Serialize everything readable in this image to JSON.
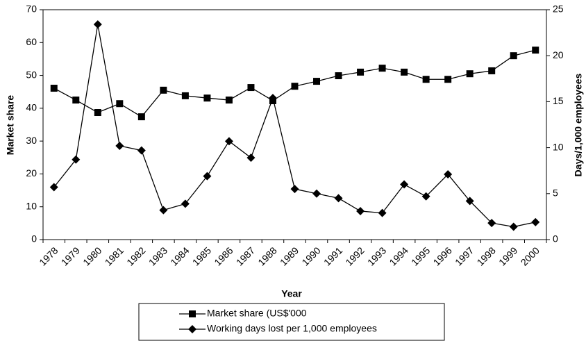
{
  "chart_data": {
    "type": "line",
    "xlabel": "Year",
    "ylabel": "Market share",
    "y2label": "Days/1,000 employees",
    "categories": [
      "1978",
      "1979",
      "1980",
      "1981",
      "1982",
      "1983",
      "1984",
      "1985",
      "1986",
      "1987",
      "1988",
      "1989",
      "1990",
      "1991",
      "1992",
      "1993",
      "1994",
      "1995",
      "1996",
      "1997",
      "1998",
      "1999",
      "2000"
    ],
    "series": [
      {
        "name": "Market share (US$'000",
        "color": "#000000",
        "marker": "square",
        "axis": "y",
        "values": [
          46.1,
          42.5,
          38.7,
          41.4,
          37.4,
          45.5,
          43.8,
          43.1,
          42.5,
          46.3,
          42.3,
          46.7,
          48.2,
          49.9,
          51.0,
          52.2,
          51.0,
          48.8,
          48.8,
          50.5,
          51.4,
          56.0,
          57.7
        ]
      },
      {
        "name": "Working days lost per 1,000 employees",
        "color": "#000000",
        "marker": "diamond",
        "axis": "y2",
        "values": [
          5.7,
          8.7,
          23.4,
          10.2,
          9.7,
          3.2,
          3.9,
          6.9,
          10.7,
          8.9,
          15.4,
          5.5,
          5.0,
          4.5,
          3.1,
          2.9,
          6.0,
          4.7,
          7.1,
          4.2,
          1.8,
          1.4,
          1.9
        ]
      }
    ],
    "ylim": [
      0,
      70
    ],
    "yticks": [
      0,
      10,
      20,
      30,
      40,
      50,
      60,
      70
    ],
    "y2lim": [
      0,
      25
    ],
    "y2ticks": [
      0,
      5,
      10,
      15,
      20,
      25
    ],
    "grid": false,
    "legend": "bottom"
  }
}
